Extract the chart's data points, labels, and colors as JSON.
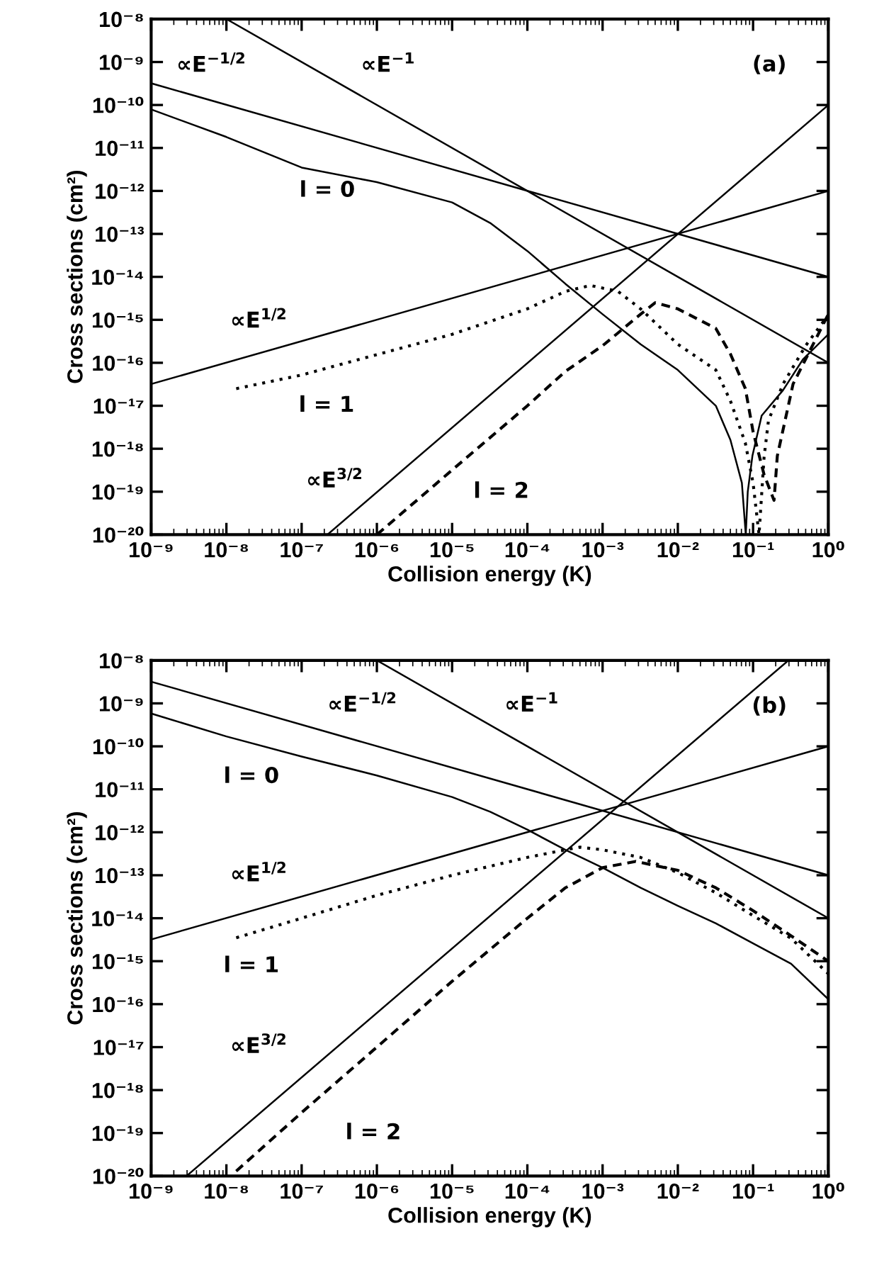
{
  "chart_data": [
    {
      "type": "line",
      "log": "xy",
      "xlabel": "Collision energy (K)",
      "ylabel": "Cross sections (cm²)",
      "grid": false,
      "xlim": [
        1e-09,
        1
      ],
      "ylim": [
        1e-20,
        1e-08
      ],
      "xticks": [
        {
          "value": 1e-09,
          "label": "10⁻⁹"
        },
        {
          "value": 1e-08,
          "label": "10⁻⁸"
        },
        {
          "value": 1e-07,
          "label": "10⁻⁷"
        },
        {
          "value": 1e-06,
          "label": "10⁻⁶"
        },
        {
          "value": 1e-05,
          "label": "10⁻⁵"
        },
        {
          "value": 0.0001,
          "label": "10⁻⁴"
        },
        {
          "value": 0.001,
          "label": "10⁻³"
        },
        {
          "value": 0.01,
          "label": "10⁻²"
        },
        {
          "value": 0.1,
          "label": "10⁻¹"
        },
        {
          "value": 1,
          "label": "10⁰"
        }
      ],
      "yticks": [
        {
          "value": 1e-20,
          "label": "10⁻²⁰"
        },
        {
          "value": 1e-19,
          "label": "10⁻¹⁹"
        },
        {
          "value": 1e-18,
          "label": "10⁻¹⁸"
        },
        {
          "value": 1e-17,
          "label": "10⁻¹⁷"
        },
        {
          "value": 1e-16,
          "label": "10⁻¹⁶"
        },
        {
          "value": 1e-15,
          "label": "10⁻¹⁵"
        },
        {
          "value": 1e-14,
          "label": "10⁻¹⁴"
        },
        {
          "value": 1e-13,
          "label": "10⁻¹³"
        },
        {
          "value": 1e-12,
          "label": "10⁻¹²"
        },
        {
          "value": 1e-11,
          "label": "10⁻¹¹"
        },
        {
          "value": 1e-10,
          "label": "10⁻¹⁰"
        },
        {
          "value": 1e-09,
          "label": "10⁻⁹"
        },
        {
          "value": 1e-08,
          "label": "10⁻⁸"
        }
      ],
      "series": [
        {
          "color": "#000000",
          "line_style": "solid",
          "x": [
            1e-09,
            1
          ],
          "values": [
            3.2e-10,
            1e-14
          ]
        },
        {
          "color": "#000000",
          "line_style": "solid",
          "x": [
            1e-08,
            1
          ],
          "values": [
            1e-08,
            1e-16
          ]
        },
        {
          "color": "#000000",
          "line_style": "solid",
          "x": [
            1e-09,
            1
          ],
          "values": [
            3.2e-17,
            1e-12
          ]
        },
        {
          "color": "#000000",
          "line_style": "solid",
          "x": [
            2.2e-07,
            1
          ],
          "values": [
            1e-20,
            1e-10
          ]
        },
        {
          "color": "#000000",
          "line_style": "solid",
          "x": [
            1e-09,
            1e-08,
            1e-07,
            1e-06,
            1e-05,
            3.2e-05,
            0.0001,
            0.00032,
            0.001,
            0.0032,
            0.01,
            0.032,
            0.05,
            0.071,
            0.08,
            0.085,
            0.098,
            0.13,
            0.25,
            0.46,
            1
          ],
          "values": [
            7.9e-11,
            1.8e-11,
            3.5e-12,
            1.6e-12,
            5.4e-13,
            1.8e-13,
            4e-14,
            6.9e-15,
            1.35e-15,
            2.7e-16,
            6.8e-17,
            1e-17,
            1.6e-18,
            1.6e-19,
            1e-20,
            1e-19,
            6.8e-19,
            5.9e-18,
            2.3e-17,
            1.2e-16,
            4.6e-16
          ]
        },
        {
          "color": "#000000",
          "line_style": "dotted",
          "x": [
            1.35e-08,
            1e-07,
            1e-06,
            1e-05,
            0.0001,
            0.00032,
            0.00069,
            0.0016,
            0.0032,
            0.01,
            0.032,
            0.05,
            0.079,
            0.1,
            0.12,
            0.14,
            0.16,
            0.25,
            0.5,
            1
          ],
          "values": [
            2.5e-17,
            5.2e-17,
            1.55e-16,
            4.6e-16,
            1.8e-15,
            4.6e-15,
            6.3e-15,
            4.6e-15,
            1.8e-15,
            2.7e-16,
            6.8e-17,
            1.3e-17,
            1.35e-18,
            1.6e-19,
            1e-20,
            6.3e-19,
            4.5e-18,
            3.2e-17,
            2.5e-16,
            1.3e-15
          ]
        },
        {
          "color": "#000000",
          "line_style": "dashed",
          "x": [
            1e-06,
            1e-05,
            0.0001,
            0.00032,
            0.001,
            0.0032,
            0.005,
            0.01,
            0.032,
            0.05,
            0.079,
            0.1,
            0.14,
            0.19,
            0.21,
            0.34,
            1
          ],
          "values": [
            1e-20,
            3.2e-19,
            1e-17,
            6.3e-17,
            2.5e-16,
            1.35e-15,
            2.5e-15,
            1.8e-15,
            6.3e-16,
            1.6e-16,
            2.5e-17,
            2.5e-18,
            2.5e-19,
            6.3e-20,
            6.8e-19,
            3.2e-17,
            1.35e-15
          ]
        }
      ],
      "annotations": [
        "(a)",
        "∝E$^{−1/2}$",
        "∝E$^{−1}$",
        "l = 0",
        "∝E$^{1/2}$",
        "l = 1",
        "∝E$^{3/2}$",
        "l = 2"
      ]
    },
    {
      "type": "line",
      "log": "xy",
      "xlabel": "Collision energy (K)",
      "ylabel": "Cross sections (cm²)",
      "grid": false,
      "xlim": [
        1e-09,
        1
      ],
      "ylim": [
        1e-20,
        1e-08
      ],
      "xticks": [
        {
          "value": 1e-09,
          "label": "10⁻⁹"
        },
        {
          "value": 1e-08,
          "label": "10⁻⁸"
        },
        {
          "value": 1e-07,
          "label": "10⁻⁷"
        },
        {
          "value": 1e-06,
          "label": "10⁻⁶"
        },
        {
          "value": 1e-05,
          "label": "10⁻⁵"
        },
        {
          "value": 0.0001,
          "label": "10⁻⁴"
        },
        {
          "value": 0.001,
          "label": "10⁻³"
        },
        {
          "value": 0.01,
          "label": "10⁻²"
        },
        {
          "value": 0.1,
          "label": "10⁻¹"
        },
        {
          "value": 1,
          "label": "10⁰"
        }
      ],
      "yticks": [
        {
          "value": 1e-20,
          "label": "10⁻²⁰"
        },
        {
          "value": 1e-19,
          "label": "10⁻¹⁹"
        },
        {
          "value": 1e-18,
          "label": "10⁻¹⁸"
        },
        {
          "value": 1e-17,
          "label": "10⁻¹⁷"
        },
        {
          "value": 1e-16,
          "label": "10⁻¹⁶"
        },
        {
          "value": 1e-15,
          "label": "10⁻¹⁵"
        },
        {
          "value": 1e-14,
          "label": "10⁻¹⁴"
        },
        {
          "value": 1e-13,
          "label": "10⁻¹³"
        },
        {
          "value": 1e-12,
          "label": "10⁻¹²"
        },
        {
          "value": 1e-11,
          "label": "10⁻¹¹"
        },
        {
          "value": 1e-10,
          "label": "10⁻¹⁰"
        },
        {
          "value": 1e-09,
          "label": "10⁻⁹"
        },
        {
          "value": 1e-08,
          "label": "10⁻⁸"
        }
      ],
      "series": [
        {
          "color": "#000000",
          "line_style": "solid",
          "x": [
            1e-09,
            1
          ],
          "values": [
            3.2e-09,
            1e-13
          ]
        },
        {
          "color": "#000000",
          "line_style": "solid",
          "x": [
            1e-06,
            1
          ],
          "values": [
            1e-08,
            1e-14
          ]
        },
        {
          "color": "#000000",
          "line_style": "solid",
          "x": [
            1e-09,
            1
          ],
          "values": [
            3.2e-15,
            1e-10
          ]
        },
        {
          "color": "#000000",
          "line_style": "solid",
          "x": [
            2.95e-09,
            0.295
          ],
          "values": [
            1e-20,
            1e-08
          ]
        },
        {
          "color": "#000000",
          "line_style": "solid",
          "x": [
            1e-09,
            1e-08,
            1e-07,
            1e-06,
            1e-05,
            3.2e-05,
            0.0001,
            0.00032,
            0.001,
            0.0032,
            0.01,
            0.032,
            0.1,
            0.32,
            1
          ],
          "values": [
            5.8e-10,
            1.7e-10,
            5.8e-11,
            2.1e-11,
            6.6e-12,
            3e-12,
            1.15e-12,
            3.9e-13,
            1.5e-13,
            5.1e-14,
            1.95e-14,
            7.6e-15,
            2.6e-15,
            8.7e-16,
            1.3e-16
          ]
        },
        {
          "color": "#000000",
          "line_style": "dotted",
          "x": [
            1.35e-08,
            1e-07,
            1e-06,
            1e-05,
            0.0001,
            0.00032,
            0.0005,
            0.001,
            0.0032,
            0.01,
            0.032,
            0.1,
            0.32,
            1
          ],
          "values": [
            3.5e-15,
            1e-14,
            3.4e-14,
            1e-13,
            2.6e-13,
            3.9e-13,
            4.5e-13,
            3.9e-13,
            2.6e-13,
            1.15e-13,
            3.9e-14,
            1.15e-14,
            3.4e-15,
            5.1e-16
          ]
        },
        {
          "color": "#000000",
          "line_style": "dashed",
          "x": [
            1.35e-08,
            1e-07,
            1e-06,
            1e-05,
            0.0001,
            0.00032,
            0.001,
            0.00275,
            0.01,
            0.032,
            0.1,
            0.32,
            1
          ],
          "values": [
            1.3e-20,
            3e-19,
            1e-17,
            3.4e-16,
            1e-14,
            5.1e-14,
            1.5e-13,
            2.1e-13,
            1.3e-13,
            5.1e-14,
            1.5e-14,
            3.9e-15,
            1e-15
          ]
        }
      ],
      "annotations": [
        "(b)",
        "∝E$^{−1/2}$",
        "∝E$^{−1}$",
        "l = 0",
        "∝E$^{1/2}$",
        "l = 1",
        "∝E$^{3/2}$",
        "l = 2"
      ]
    }
  ]
}
